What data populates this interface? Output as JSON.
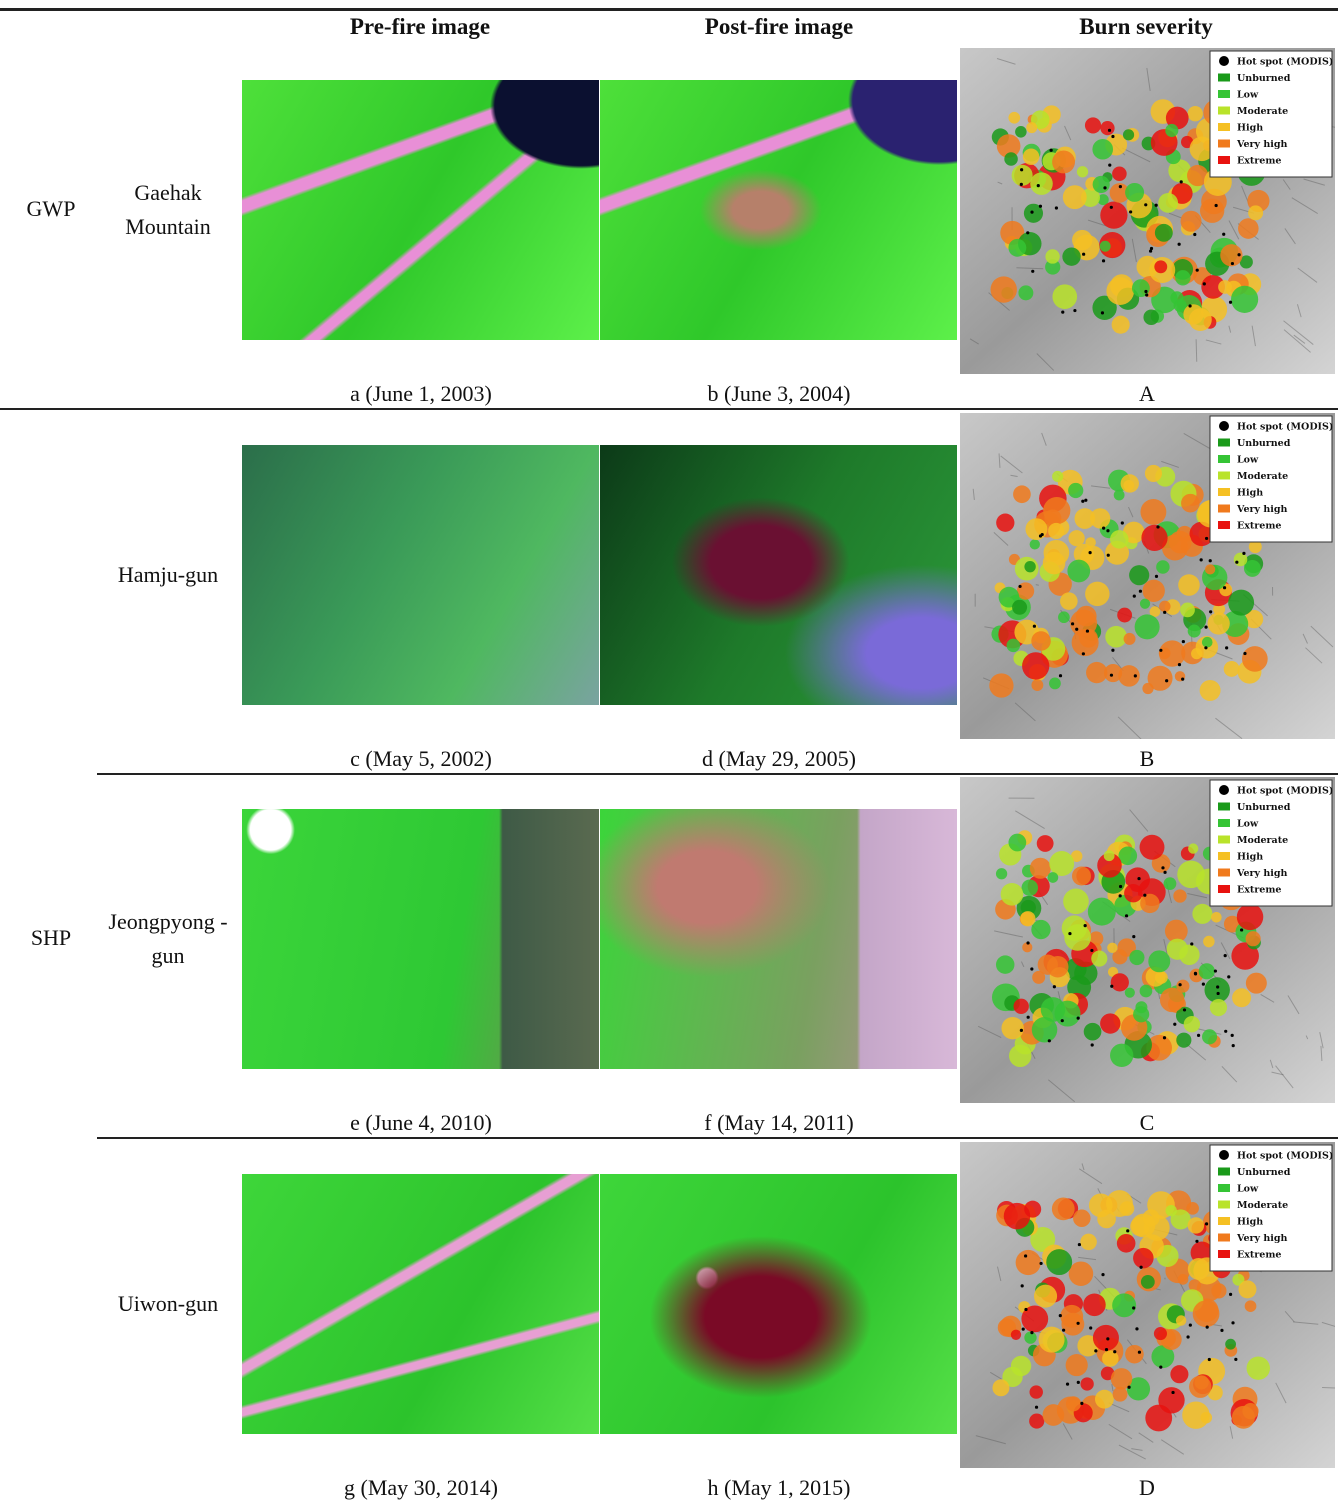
{
  "table": {
    "header": [
      "Pre-fire image",
      "Post-fire image",
      "Burn severity"
    ],
    "legend": [
      {
        "label": "Hot spot (MODIS)",
        "color": "#000000"
      },
      {
        "label": "Unburned",
        "color": "#1a9a1a"
      },
      {
        "label": "Low",
        "color": "#35c435"
      },
      {
        "label": "Moderate",
        "color": "#b9e32a"
      },
      {
        "label": "High",
        "color": "#f5c023"
      },
      {
        "label": "Very high",
        "color": "#f07a1d"
      },
      {
        "label": "Extreme",
        "color": "#e8120f"
      }
    ],
    "rows": [
      {
        "group": "GWP",
        "site": "Gaehak Mountain",
        "pre": "a (June 1, 2003)",
        "post": "b (June 3, 2004)",
        "severity": "A"
      },
      {
        "site": "Hamju-gun",
        "pre": "c (May 5, 2002)",
        "post": "d (May 29, 2005)",
        "severity": "B"
      },
      {
        "group": "SHP",
        "site": "Jeongpyong -gun",
        "pre": "e (June 4, 2010)",
        "post": "f (May 14, 2011)",
        "severity": "C"
      },
      {
        "site": "Uiwon-gun",
        "pre": "g (May 30, 2014)",
        "post": "h (May 1, 2015)",
        "severity": "D"
      }
    ]
  }
}
